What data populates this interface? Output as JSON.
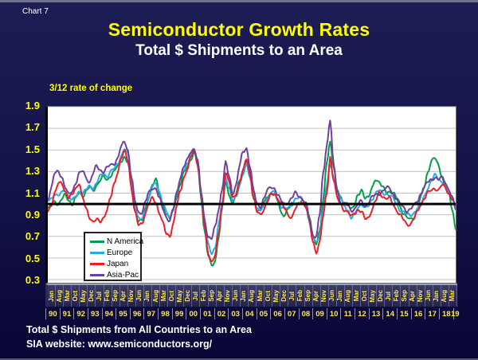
{
  "slide": {
    "chart_label": "Chart 7",
    "title": "Semiconductor Growth Rates",
    "subtitle": "Total $ Shipments to an Area",
    "footer_line1": "Total $ Shipments from All Countries to an Area",
    "footer_line2": "SIA website:  www.semiconductors.org/"
  },
  "colors": {
    "background": "#15154a",
    "title_yellow": "#ffff00",
    "axis_label_yellow": "#ffe84a",
    "plot_background": "#ffffff",
    "gridline": "#c0c0c0",
    "reference_line": "#000000"
  },
  "chart_data": {
    "type": "line",
    "title": "Semiconductor Growth Rates",
    "subtitle": "Total $ Shipments to an Area",
    "ylabel": "3/12 rate of change",
    "ylim": [
      0.3,
      1.9
    ],
    "yticks": [
      1.9,
      1.7,
      1.5,
      1.3,
      1.1,
      0.9,
      0.7,
      0.5,
      0.3
    ],
    "reference_line": 1.0,
    "grid": "horizontal",
    "legend_position": "inside-bottom-left",
    "x_start": "Jan 1990",
    "x_end": "Mar 2019",
    "x_sampling": "quarterly",
    "x_tick_months": [
      "Jan",
      "Aug",
      "Mar",
      "Oct",
      "May",
      "Dec",
      "Jul",
      "Feb",
      "Sep",
      "Apr",
      "Nov",
      "Jun",
      "Jan",
      "Aug",
      "Mar",
      "Oct",
      "May",
      "Dec",
      "Jul",
      "Feb",
      "Sep",
      "Apr",
      "Nov",
      "Jun",
      "Jan",
      "Aug",
      "Mar",
      "Oct",
      "May",
      "Dec",
      "Jul",
      "Feb",
      "Sep",
      "Apr",
      "Nov",
      "Jun",
      "Jan",
      "Aug",
      "Mar",
      "Oct",
      "May",
      "Dec",
      "Jul",
      "Feb",
      "Sep",
      "Apr",
      "Nov",
      "Jun",
      "Jan",
      "Aug",
      "Mar"
    ],
    "x_tick_years": [
      "90",
      "91",
      "92",
      "93",
      "94",
      "95",
      "96",
      "97",
      "98",
      "99",
      "00",
      "01",
      "02",
      "03",
      "04",
      "05",
      "06",
      "07",
      "08",
      "09",
      "10",
      "11",
      "12",
      "13",
      "14",
      "15",
      "16",
      "17",
      "18",
      "19"
    ],
    "series": [
      {
        "name": "N America",
        "color": "#009e49",
        "values": [
          0.95,
          0.98,
          1.03,
          1.0,
          1.04,
          1.08,
          1.04,
          1.0,
          1.05,
          1.1,
          1.08,
          1.12,
          1.15,
          1.12,
          1.18,
          1.22,
          1.25,
          1.22,
          1.27,
          1.3,
          1.34,
          1.4,
          1.44,
          1.38,
          1.15,
          0.95,
          0.85,
          0.84,
          0.95,
          1.08,
          1.18,
          1.22,
          1.1,
          1.0,
          0.9,
          0.86,
          0.95,
          1.08,
          1.18,
          1.28,
          1.35,
          1.42,
          1.47,
          1.35,
          1.05,
          0.75,
          0.52,
          0.42,
          0.48,
          0.7,
          0.95,
          1.2,
          1.1,
          1.0,
          1.08,
          1.22,
          1.32,
          1.4,
          1.3,
          1.1,
          0.95,
          0.93,
          1.0,
          1.08,
          1.1,
          1.08,
          1.02,
          0.92,
          0.9,
          0.95,
          1.0,
          1.02,
          1.0,
          1.02,
          0.98,
          0.85,
          0.68,
          0.62,
          0.75,
          1.05,
          1.38,
          1.56,
          1.35,
          1.15,
          1.05,
          0.98,
          1.02,
          0.96,
          0.98,
          1.08,
          1.14,
          1.06,
          1.05,
          1.15,
          1.24,
          1.2,
          1.15,
          1.12,
          1.12,
          1.1,
          1.05,
          0.98,
          0.92,
          0.87,
          0.85,
          0.88,
          0.96,
          1.06,
          1.16,
          1.3,
          1.4,
          1.42,
          1.36,
          1.27,
          1.2,
          1.1,
          0.95,
          0.78
        ]
      },
      {
        "name": "Europe",
        "color": "#29abe2",
        "values": [
          1.02,
          1.05,
          1.1,
          1.07,
          1.1,
          1.13,
          1.08,
          1.03,
          1.06,
          1.12,
          1.1,
          1.13,
          1.16,
          1.15,
          1.2,
          1.25,
          1.28,
          1.26,
          1.3,
          1.32,
          1.37,
          1.45,
          1.51,
          1.45,
          1.2,
          0.98,
          0.86,
          0.85,
          0.95,
          1.06,
          1.15,
          1.19,
          1.12,
          1.02,
          0.92,
          0.87,
          0.96,
          1.1,
          1.22,
          1.32,
          1.38,
          1.45,
          1.5,
          1.4,
          1.12,
          0.82,
          0.62,
          0.55,
          0.6,
          0.8,
          1.0,
          1.26,
          1.15,
          1.02,
          1.06,
          1.18,
          1.28,
          1.35,
          1.25,
          1.08,
          0.95,
          0.93,
          0.98,
          1.05,
          1.1,
          1.1,
          1.05,
          0.98,
          0.95,
          0.96,
          1.0,
          1.05,
          1.05,
          1.05,
          1.0,
          0.88,
          0.7,
          0.64,
          0.72,
          0.95,
          1.15,
          1.38,
          1.25,
          1.1,
          1.05,
          1.0,
          0.95,
          0.86,
          0.9,
          0.98,
          1.0,
          0.95,
          0.98,
          1.05,
          1.1,
          1.12,
          1.1,
          1.1,
          1.08,
          1.05,
          1.0,
          0.95,
          0.92,
          0.9,
          0.9,
          0.92,
          0.95,
          1.0,
          1.08,
          1.15,
          1.2,
          1.27,
          1.25,
          1.2,
          1.16,
          1.12,
          1.06,
          1.0
        ]
      },
      {
        "name": "Japan",
        "color": "#ee1c25",
        "values": [
          0.93,
          1.0,
          1.1,
          1.18,
          1.2,
          1.12,
          1.05,
          1.08,
          1.15,
          1.2,
          1.05,
          0.95,
          0.88,
          0.84,
          0.85,
          0.83,
          0.88,
          0.95,
          1.05,
          1.18,
          1.3,
          1.42,
          1.48,
          1.4,
          1.15,
          0.92,
          0.8,
          0.82,
          0.92,
          1.0,
          1.05,
          1.02,
          0.92,
          0.82,
          0.72,
          0.71,
          0.82,
          0.98,
          1.12,
          1.25,
          1.32,
          1.42,
          1.5,
          1.38,
          1.08,
          0.78,
          0.55,
          0.47,
          0.52,
          0.72,
          0.98,
          1.3,
          1.2,
          1.05,
          1.1,
          1.2,
          1.3,
          1.42,
          1.28,
          1.05,
          0.92,
          0.9,
          0.96,
          1.02,
          1.08,
          1.1,
          1.05,
          1.0,
          0.95,
          0.9,
          0.88,
          0.95,
          1.0,
          1.02,
          0.98,
          0.85,
          0.65,
          0.56,
          0.65,
          0.88,
          1.1,
          1.44,
          1.22,
          1.05,
          1.0,
          0.95,
          0.92,
          0.88,
          0.92,
          0.95,
          0.92,
          0.86,
          0.88,
          0.95,
          1.02,
          1.1,
          1.08,
          1.05,
          1.05,
          1.0,
          0.95,
          0.9,
          0.85,
          0.81,
          0.82,
          0.86,
          0.92,
          1.0,
          1.06,
          1.1,
          1.12,
          1.15,
          1.13,
          1.17,
          1.15,
          1.1,
          1.05,
          0.97
        ]
      },
      {
        "name": "Asia-Pac",
        "color": "#6f3f9f",
        "values": [
          1.05,
          1.15,
          1.28,
          1.3,
          1.26,
          1.15,
          1.08,
          1.12,
          1.2,
          1.28,
          1.3,
          1.25,
          1.2,
          1.28,
          1.35,
          1.32,
          1.3,
          1.33,
          1.36,
          1.38,
          1.42,
          1.52,
          1.58,
          1.5,
          1.25,
          1.02,
          0.92,
          0.93,
          1.02,
          1.1,
          1.15,
          1.15,
          1.05,
          0.95,
          0.88,
          0.85,
          0.95,
          1.1,
          1.25,
          1.35,
          1.4,
          1.48,
          1.52,
          1.4,
          1.1,
          0.85,
          0.7,
          0.68,
          0.78,
          0.95,
          1.15,
          1.38,
          1.25,
          1.1,
          1.18,
          1.35,
          1.48,
          1.52,
          1.35,
          1.12,
          1.0,
          0.98,
          1.05,
          1.12,
          1.16,
          1.15,
          1.08,
          1.02,
          1.0,
          1.02,
          1.05,
          1.1,
          1.08,
          1.05,
          1.0,
          0.88,
          0.72,
          0.7,
          0.9,
          1.28,
          1.55,
          1.78,
          1.35,
          1.12,
          1.02,
          1.0,
          0.98,
          0.94,
          0.96,
          1.0,
          1.02,
          0.98,
          1.02,
          1.06,
          1.08,
          1.1,
          1.12,
          1.14,
          1.15,
          1.1,
          1.05,
          1.0,
          0.97,
          0.94,
          0.95,
          0.98,
          1.03,
          1.1,
          1.15,
          1.2,
          1.23,
          1.25,
          1.22,
          1.24,
          1.2,
          1.14,
          1.05,
          0.95
        ]
      }
    ]
  }
}
